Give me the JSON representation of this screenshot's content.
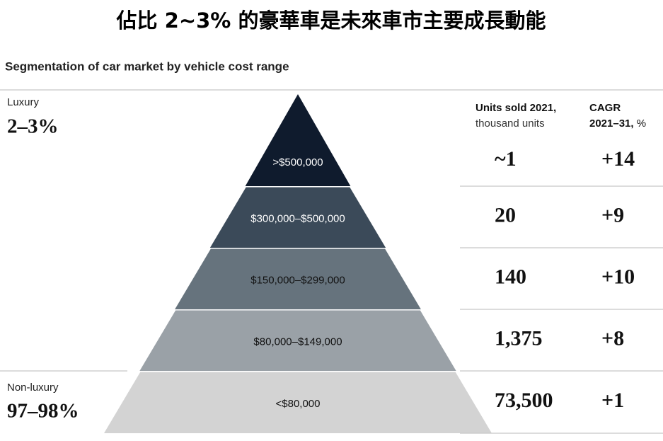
{
  "title": "佔比 2~3% 的豪華車是未來車市主要成長動能",
  "subtitle": "Segmentation of car market by vehicle cost range",
  "segments": [
    {
      "name": "Luxury",
      "share": "2–3%"
    },
    {
      "name": "Non-luxury",
      "share": "97–98%"
    }
  ],
  "columns": {
    "units": [
      "Units sold 2021,",
      "thousand units"
    ],
    "cagr": [
      "CAGR",
      "2021–31,",
      "%"
    ]
  },
  "tiers": [
    {
      "range": ">$500,000",
      "units": "~1",
      "cagr": "+14"
    },
    {
      "range": "$300,000–$500,000",
      "units": "20",
      "cagr": "+9"
    },
    {
      "range": "$150,000–$299,000",
      "units": "140",
      "cagr": "+10"
    },
    {
      "range": "$80,000–$149,000",
      "units": "1,375",
      "cagr": "+8"
    },
    {
      "range": "<$80,000",
      "units": "73,500",
      "cagr": "+1"
    }
  ]
}
